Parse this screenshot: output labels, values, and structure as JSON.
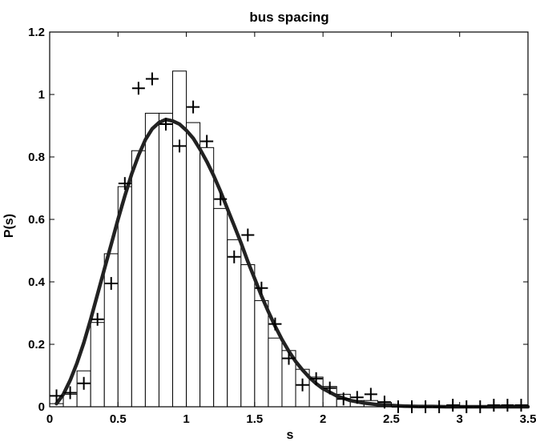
{
  "chart_data": {
    "type": "bar",
    "title": "bus spacing",
    "xlabel": "s",
    "ylabel": "P(s)",
    "xlim": [
      0,
      3.5
    ],
    "ylim": [
      0,
      1.2
    ],
    "xticks": [
      "0",
      "0.5",
      "1",
      "1.5",
      "2",
      "2.5",
      "3",
      "3.5"
    ],
    "yticks": [
      "0",
      "0.2",
      "0.4",
      "0.6",
      "0.8",
      "1",
      "1.2"
    ],
    "grid": false,
    "legend": "none",
    "histogram": {
      "bin_width": 0.1,
      "bin_centers": [
        0.05,
        0.15,
        0.25,
        0.35,
        0.45,
        0.55,
        0.65,
        0.75,
        0.85,
        0.95,
        1.05,
        1.15,
        1.25,
        1.35,
        1.45,
        1.55,
        1.65,
        1.75,
        1.85,
        1.95,
        2.05,
        2.15,
        2.25,
        2.35,
        2.45,
        2.55,
        2.65,
        2.75,
        2.85,
        2.95,
        3.05,
        3.15,
        3.25,
        3.35,
        3.45
      ],
      "values": [
        0.01,
        0.04,
        0.115,
        0.27,
        0.49,
        0.705,
        0.82,
        0.94,
        0.94,
        1.075,
        0.91,
        0.83,
        0.635,
        0.535,
        0.455,
        0.34,
        0.22,
        0.18,
        0.12,
        0.095,
        0.065,
        0.04,
        0.02,
        0.02,
        0.01,
        0.005,
        0.003,
        0.002,
        0.002,
        0.002,
        0.001,
        0.001,
        0.001,
        0.001,
        0.001
      ]
    },
    "markers": {
      "x": [
        0.05,
        0.15,
        0.25,
        0.35,
        0.45,
        0.55,
        0.65,
        0.75,
        0.85,
        0.95,
        1.05,
        1.15,
        1.25,
        1.35,
        1.45,
        1.55,
        1.65,
        1.75,
        1.85,
        1.95,
        2.05,
        2.15,
        2.25,
        2.35,
        2.45,
        2.55,
        2.65,
        2.75,
        2.85,
        2.95,
        3.05,
        3.15,
        3.25,
        3.35,
        3.45
      ],
      "y": [
        0.035,
        0.045,
        0.075,
        0.28,
        0.395,
        0.715,
        1.02,
        1.05,
        0.905,
        0.835,
        0.96,
        0.85,
        0.665,
        0.48,
        0.55,
        0.38,
        0.265,
        0.155,
        0.07,
        0.09,
        0.06,
        0.025,
        0.03,
        0.04,
        0.015,
        0.0,
        0.0,
        0.0,
        0.0,
        0.005,
        0.0,
        0.0,
        0.005,
        0.005,
        0.005
      ]
    },
    "curve": {
      "x": [
        0.05,
        0.1,
        0.15,
        0.2,
        0.25,
        0.3,
        0.35,
        0.4,
        0.45,
        0.5,
        0.55,
        0.6,
        0.65,
        0.7,
        0.75,
        0.8,
        0.85,
        0.9,
        0.95,
        1.0,
        1.05,
        1.1,
        1.15,
        1.2,
        1.25,
        1.3,
        1.35,
        1.4,
        1.45,
        1.5,
        1.55,
        1.6,
        1.65,
        1.7,
        1.75,
        1.8,
        1.85,
        1.9,
        1.95,
        2.0,
        2.1,
        2.2,
        2.3,
        2.4,
        2.5,
        2.6,
        2.7,
        2.8,
        2.9,
        3.0,
        3.1,
        3.2,
        3.3,
        3.4,
        3.5
      ],
      "y": [
        0.01,
        0.04,
        0.085,
        0.14,
        0.205,
        0.28,
        0.36,
        0.44,
        0.52,
        0.6,
        0.675,
        0.745,
        0.805,
        0.855,
        0.89,
        0.91,
        0.92,
        0.915,
        0.905,
        0.885,
        0.86,
        0.825,
        0.785,
        0.74,
        0.69,
        0.635,
        0.58,
        0.525,
        0.465,
        0.41,
        0.355,
        0.305,
        0.258,
        0.215,
        0.178,
        0.145,
        0.118,
        0.094,
        0.074,
        0.058,
        0.035,
        0.02,
        0.012,
        0.007,
        0.004,
        0.002,
        0.001,
        0.001,
        0.0,
        0.0,
        0.0,
        0.0,
        0.0,
        0.0,
        0.0
      ]
    },
    "colors": {
      "bar_fill": "#ffffff",
      "bar_edge": "#000000",
      "curve": "#222222",
      "markers": "#000000",
      "axes": "#000000"
    }
  }
}
